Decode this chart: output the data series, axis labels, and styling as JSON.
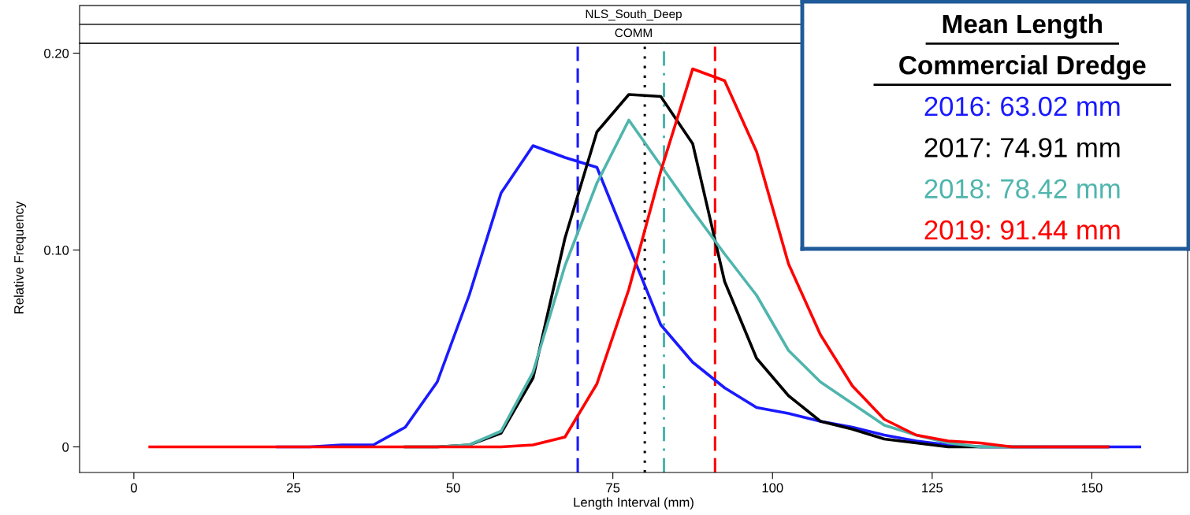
{
  "chart_data": {
    "type": "line",
    "xlabel": "Length Interval (mm)",
    "ylabel": "Relative Frequency",
    "x": [
      2.5,
      7.5,
      12.5,
      17.5,
      22.5,
      27.5,
      32.5,
      37.5,
      42.5,
      47.5,
      52.5,
      57.5,
      62.5,
      67.5,
      72.5,
      77.5,
      82.5,
      87.5,
      92.5,
      97.5,
      102.5,
      107.5,
      112.5,
      117.5,
      122.5,
      127.5,
      132.5,
      137.5,
      142.5,
      147.5,
      152.5,
      157.5
    ],
    "series": [
      {
        "color": "#1a1aff",
        "values": [
          null,
          null,
          null,
          null,
          0,
          0,
          0.001,
          0.001,
          0.01,
          0.033,
          0.077,
          0.129,
          0.153,
          0.147,
          0.142,
          0.102,
          0.062,
          0.043,
          0.03,
          0.02,
          0.017,
          0.013,
          0.01,
          0.006,
          0.003,
          0.001,
          0,
          0,
          0,
          0,
          0,
          0
        ]
      },
      {
        "color": "#000000",
        "values": [
          null,
          null,
          null,
          null,
          null,
          null,
          null,
          null,
          0,
          0,
          0.001,
          0.007,
          0.035,
          0.106,
          0.16,
          0.179,
          0.178,
          0.154,
          0.084,
          0.045,
          0.026,
          0.013,
          0.009,
          0.004,
          0.002,
          0,
          0,
          0,
          0,
          0,
          0,
          null
        ]
      },
      {
        "color": "#4fb5ad",
        "values": [
          null,
          null,
          null,
          null,
          null,
          null,
          null,
          null,
          0,
          0,
          0.001,
          0.008,
          0.038,
          0.092,
          0.134,
          0.166,
          0.143,
          0.12,
          0.098,
          0.077,
          0.049,
          0.033,
          0.022,
          0.011,
          0.006,
          0.002,
          0,
          0,
          0,
          null,
          null,
          null
        ]
      },
      {
        "color": "#ff0000",
        "values": [
          0,
          0,
          0,
          0,
          0,
          0,
          0,
          0,
          0,
          0,
          0,
          0,
          0.001,
          0.005,
          0.032,
          0.08,
          0.14,
          0.192,
          0.186,
          0.15,
          0.093,
          0.057,
          0.031,
          0.014,
          0.006,
          0.003,
          0.002,
          0,
          0,
          0,
          0,
          null
        ]
      }
    ],
    "xlim": [
      -8.5,
      165
    ],
    "ylim": [
      -0.013,
      0.205
    ],
    "xticks": [
      0,
      25,
      50,
      75,
      100,
      125,
      150
    ],
    "yticks": [
      0,
      {
        "value": 0.1,
        "label": "0.10"
      },
      {
        "value": 0.2,
        "label": "0.20"
      }
    ],
    "ref_lines": [
      {
        "axis": "x",
        "value": 69.5,
        "color": "#1a1aff",
        "line_style": "dashed"
      },
      {
        "axis": "x",
        "value": 80,
        "color": "#000000",
        "line_style": "dotted"
      },
      {
        "axis": "x",
        "value": 83,
        "color": "#4fb5ad",
        "line_style": "dashdot"
      },
      {
        "axis": "x",
        "value": 91,
        "color": "#ff0000",
        "line_style": "dashed"
      }
    ],
    "annotations": [
      "NLS_South_Deep",
      "COMM",
      "Mean Length",
      "Commercial Dredge",
      "2016: 63.02 mm",
      "2017: 74.91 mm",
      "2018: 78.42 mm",
      "2019: 91.44 mm"
    ],
    "grid": false,
    "legend": false
  }
}
